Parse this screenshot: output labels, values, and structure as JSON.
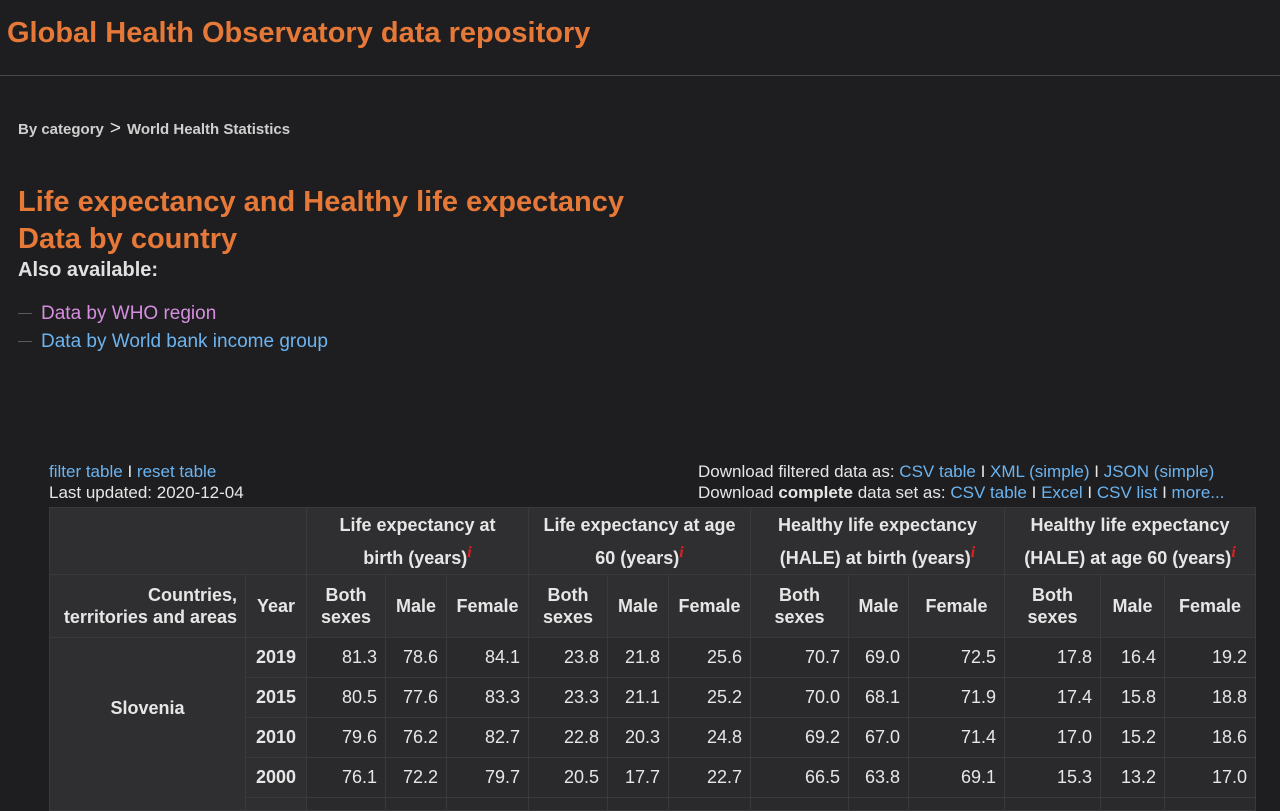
{
  "header": {
    "title": "Global Health Observatory data repository"
  },
  "breadcrumb": {
    "root": "By category",
    "separator": ">",
    "current": "World Health Statistics"
  },
  "page": {
    "title_line1": "Life expectancy and Healthy life expectancy",
    "title_line2": "Data by country",
    "also_available": "Also available:",
    "alt_links": [
      {
        "label": "Data by WHO region",
        "visited": true
      },
      {
        "label": "Data by World bank income group",
        "visited": false
      }
    ]
  },
  "table_tools": {
    "filter": "filter table",
    "sep": "I",
    "reset": "reset table",
    "last_updated": "Last updated: 2020-12-04",
    "download_filtered_label": "Download filtered data as:",
    "download_complete_prefix": "Download",
    "download_complete_bold": "complete",
    "download_complete_suffix": "data set as:",
    "filtered_links": [
      "CSV table",
      "XML (simple)",
      "JSON (simple)"
    ],
    "complete_links": [
      "CSV table",
      "Excel",
      "CSV list",
      "more..."
    ]
  },
  "table": {
    "info_glyph": "i",
    "groups": [
      {
        "line1": "Life expectancy at",
        "line2": "birth (years)"
      },
      {
        "line1": "Life expectancy at age",
        "line2": "60 (years)"
      },
      {
        "line1": "Healthy life expectancy",
        "line2": "(HALE) at birth (years)"
      },
      {
        "line1": "Healthy life expectancy",
        "line2": "(HALE) at age 60 (years)"
      }
    ],
    "col_countries_1": "Countries,",
    "col_countries_2": "territories and areas",
    "col_year": "Year",
    "sub_both_1": "Both",
    "sub_both_2": "sexes",
    "sub_male": "Male",
    "sub_female": "Female",
    "country": "Slovenia",
    "rows": [
      {
        "year": "2019",
        "values": [
          "81.3",
          "78.6",
          "84.1",
          "23.8",
          "21.8",
          "25.6",
          "70.7",
          "69.0",
          "72.5",
          "17.8",
          "16.4",
          "19.2"
        ]
      },
      {
        "year": "2015",
        "values": [
          "80.5",
          "77.6",
          "83.3",
          "23.3",
          "21.1",
          "25.2",
          "70.0",
          "68.1",
          "71.9",
          "17.4",
          "15.8",
          "18.8"
        ]
      },
      {
        "year": "2010",
        "values": [
          "79.6",
          "76.2",
          "82.7",
          "22.8",
          "20.3",
          "24.8",
          "69.2",
          "67.0",
          "71.4",
          "17.0",
          "15.2",
          "18.6"
        ]
      },
      {
        "year": "2000",
        "values": [
          "76.1",
          "72.2",
          "79.7",
          "20.5",
          "17.7",
          "22.7",
          "66.5",
          "63.8",
          "69.1",
          "15.3",
          "13.2",
          "17.0"
        ]
      }
    ]
  }
}
